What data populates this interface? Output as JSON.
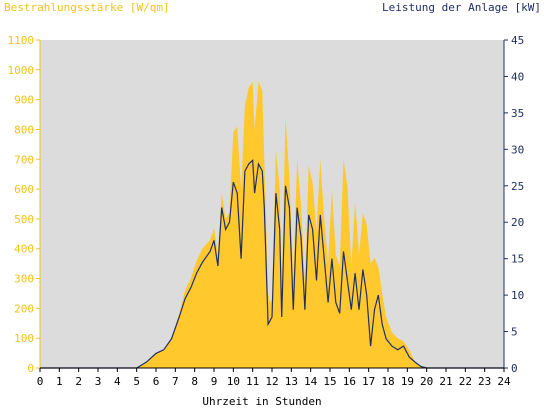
{
  "chart_data": {
    "type": "area",
    "title_left": "Bestrahlungsstärke [W/qm]",
    "title_right": "Leistung der Anlage [kW]",
    "xlabel": "Uhrzeit in Stunden",
    "x_ticks": [
      "0",
      "1",
      "2",
      "3",
      "4",
      "5",
      "6",
      "7",
      "8",
      "9",
      "10",
      "11",
      "12",
      "13",
      "14",
      "15",
      "16",
      "17",
      "18",
      "19",
      "20",
      "21",
      "22",
      "23",
      "24"
    ],
    "y_left_ticks": [
      "0",
      "100",
      "200",
      "300",
      "400",
      "500",
      "600",
      "700",
      "800",
      "900",
      "1000",
      "1100"
    ],
    "y_right_ticks": [
      "0",
      "5",
      "10",
      "15",
      "20",
      "25",
      "30",
      "35",
      "40",
      "45"
    ],
    "xlim": [
      0,
      24
    ],
    "ylim_left": [
      0,
      1100
    ],
    "ylim_right": [
      0,
      45
    ],
    "grid": false,
    "colors": {
      "plot_bg": "#dcdcdc",
      "irradiance": "#ffc82c",
      "power": "#1f2f66",
      "left_axis": "#f3c21a",
      "right_axis": "#1f2f66"
    },
    "series": [
      {
        "name": "Bestrahlungsstärke [W/qm]",
        "axis": "left",
        "x": [
          0,
          5,
          5.5,
          6,
          6.4,
          6.8,
          7.2,
          7.5,
          7.8,
          8.1,
          8.4,
          8.8,
          9.0,
          9.2,
          9.4,
          9.6,
          9.8,
          10.0,
          10.2,
          10.4,
          10.6,
          10.8,
          11.0,
          11.1,
          11.3,
          11.5,
          11.6,
          11.8,
          11.9,
          12.0,
          12.2,
          12.4,
          12.5,
          12.7,
          12.9,
          13.1,
          13.3,
          13.5,
          13.7,
          13.9,
          14.1,
          14.3,
          14.5,
          14.7,
          14.9,
          15.1,
          15.3,
          15.5,
          15.7,
          15.9,
          16.1,
          16.3,
          16.5,
          16.7,
          16.9,
          17.1,
          17.3,
          17.5,
          17.7,
          17.9,
          18.2,
          18.5,
          18.8,
          19.1,
          19.4,
          19.7,
          20.0,
          20.3,
          20.6,
          21,
          24
        ],
        "values": [
          0,
          0,
          20,
          50,
          60,
          100,
          180,
          260,
          300,
          360,
          400,
          430,
          470,
          380,
          590,
          500,
          520,
          790,
          810,
          600,
          880,
          940,
          960,
          800,
          960,
          930,
          700,
          250,
          220,
          230,
          730,
          600,
          260,
          840,
          640,
          300,
          700,
          550,
          280,
          680,
          620,
          460,
          700,
          500,
          350,
          600,
          380,
          340,
          700,
          610,
          340,
          560,
          380,
          520,
          480,
          350,
          370,
          340,
          250,
          170,
          120,
          100,
          90,
          60,
          20,
          5,
          0,
          0,
          0,
          0,
          0
        ]
      },
      {
        "name": "Leistung der Anlage [kW]",
        "axis": "right",
        "x": [
          0,
          5,
          5.5,
          6,
          6.4,
          6.8,
          7.2,
          7.5,
          7.8,
          8.1,
          8.4,
          8.8,
          9.0,
          9.2,
          9.4,
          9.6,
          9.8,
          10.0,
          10.2,
          10.4,
          10.6,
          10.8,
          11.0,
          11.1,
          11.3,
          11.5,
          11.6,
          11.8,
          11.9,
          12.0,
          12.2,
          12.4,
          12.5,
          12.7,
          12.9,
          13.1,
          13.3,
          13.5,
          13.7,
          13.9,
          14.1,
          14.3,
          14.5,
          14.7,
          14.9,
          15.1,
          15.3,
          15.5,
          15.7,
          15.9,
          16.1,
          16.3,
          16.5,
          16.7,
          16.9,
          17.1,
          17.3,
          17.5,
          17.7,
          17.9,
          18.2,
          18.5,
          18.8,
          19.1,
          19.4,
          19.7,
          20.0,
          20.3,
          20.6,
          21,
          24
        ],
        "values": [
          0,
          0,
          0.8,
          2.0,
          2.5,
          4.0,
          7.0,
          9.5,
          11.0,
          13.0,
          14.5,
          16.0,
          17.5,
          14.0,
          22.0,
          19.0,
          20.0,
          25.5,
          24.0,
          15.0,
          27.0,
          28.0,
          28.5,
          24.0,
          28.0,
          27.0,
          22.0,
          6.0,
          6.5,
          7.0,
          24.0,
          19.0,
          7.0,
          25.0,
          22.0,
          8.0,
          22.0,
          18.0,
          8.0,
          21.0,
          19.0,
          12.0,
          21.0,
          15.0,
          9.0,
          15.0,
          9.0,
          7.5,
          16.0,
          12.0,
          8.0,
          13.0,
          8.0,
          13.5,
          10.0,
          3.0,
          8.0,
          10.0,
          6.0,
          4.0,
          3.0,
          2.5,
          3.0,
          1.5,
          0.8,
          0.2,
          0,
          0,
          0,
          0,
          0
        ]
      }
    ]
  }
}
